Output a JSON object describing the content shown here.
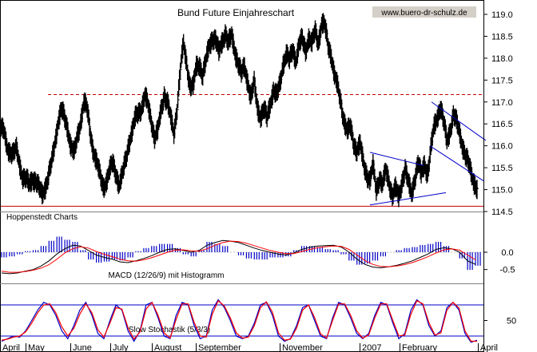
{
  "chart_data": [
    {
      "type": "bar",
      "subtype": "ohlc",
      "title": "Bund Future Einjahreschart",
      "source_label": "www.buero-dr-schulz.de",
      "panel_label": "Hoppenstedt Charts",
      "ylim": [
        114.5,
        119.0
      ],
      "yticks": [
        "119.0",
        "118.5",
        "118.0",
        "117.5",
        "117.0",
        "116.5",
        "116.0",
        "115.5",
        "115.0",
        "114.5"
      ],
      "x_labels": [
        "April",
        "May",
        "June",
        "July",
        "August",
        "September",
        "November",
        "2007",
        "February",
        "April"
      ],
      "support_level": 114.62,
      "resistance_level": 117.17,
      "price_path": [
        [
          0,
          116.4
        ],
        [
          4,
          116.3
        ],
        [
          8,
          116.0
        ],
        [
          12,
          115.9
        ],
        [
          16,
          115.8
        ],
        [
          20,
          115.9
        ],
        [
          24,
          115.6
        ],
        [
          28,
          115.3
        ],
        [
          32,
          115.2
        ],
        [
          36,
          115.1
        ],
        [
          40,
          115.3
        ],
        [
          44,
          115.2
        ],
        [
          48,
          115.0
        ],
        [
          52,
          114.9
        ],
        [
          56,
          115.1
        ],
        [
          60,
          115.3
        ],
        [
          64,
          115.6
        ],
        [
          68,
          116.1
        ],
        [
          72,
          116.6
        ],
        [
          76,
          116.8
        ],
        [
          80,
          116.6
        ],
        [
          84,
          116.4
        ],
        [
          88,
          116.0
        ],
        [
          92,
          115.8
        ],
        [
          96,
          116.2
        ],
        [
          100,
          116.6
        ],
        [
          104,
          117.0
        ],
        [
          108,
          116.8
        ],
        [
          112,
          116.3
        ],
        [
          116,
          115.9
        ],
        [
          120,
          115.6
        ],
        [
          124,
          115.3
        ],
        [
          128,
          115.1
        ],
        [
          132,
          115.2
        ],
        [
          136,
          115.4
        ],
        [
          140,
          115.6
        ],
        [
          144,
          115.4
        ],
        [
          148,
          115.1
        ],
        [
          152,
          115.3
        ],
        [
          156,
          115.7
        ],
        [
          160,
          116.1
        ],
        [
          164,
          116.3
        ],
        [
          168,
          116.6
        ],
        [
          172,
          116.8
        ],
        [
          176,
          116.9
        ],
        [
          180,
          117.1
        ],
        [
          184,
          116.9
        ],
        [
          188,
          116.6
        ],
        [
          192,
          116.2
        ],
        [
          196,
          116.3
        ],
        [
          200,
          116.8
        ],
        [
          204,
          117.2
        ],
        [
          208,
          117.0
        ],
        [
          212,
          116.6
        ],
        [
          216,
          116.3
        ],
        [
          220,
          116.9
        ],
        [
          224,
          117.7
        ],
        [
          228,
          118.3
        ],
        [
          232,
          117.9
        ],
        [
          236,
          117.4
        ],
        [
          240,
          117.3
        ],
        [
          244,
          117.8
        ],
        [
          248,
          117.9
        ],
        [
          252,
          117.6
        ],
        [
          256,
          117.9
        ],
        [
          260,
          118.3
        ],
        [
          264,
          118.5
        ],
        [
          268,
          118.4
        ],
        [
          272,
          118.1
        ],
        [
          276,
          118.4
        ],
        [
          280,
          118.6
        ],
        [
          284,
          118.3
        ],
        [
          288,
          118.5
        ],
        [
          292,
          118.2
        ],
        [
          296,
          117.9
        ],
        [
          300,
          117.6
        ],
        [
          304,
          117.8
        ],
        [
          308,
          117.5
        ],
        [
          312,
          117.1
        ],
        [
          316,
          117.4
        ],
        [
          320,
          116.9
        ],
        [
          324,
          116.7
        ],
        [
          328,
          116.8
        ],
        [
          332,
          116.6
        ],
        [
          336,
          117.0
        ],
        [
          340,
          117.3
        ],
        [
          344,
          117.1
        ],
        [
          348,
          117.4
        ],
        [
          352,
          117.9
        ],
        [
          356,
          118.1
        ],
        [
          360,
          117.9
        ],
        [
          364,
          118.2
        ],
        [
          368,
          118.0
        ],
        [
          372,
          118.3
        ],
        [
          376,
          118.4
        ],
        [
          380,
          118.2
        ],
        [
          384,
          118.5
        ],
        [
          388,
          118.3
        ],
        [
          392,
          118.6
        ],
        [
          396,
          118.4
        ],
        [
          400,
          118.8
        ],
        [
          404,
          118.7
        ],
        [
          408,
          118.3
        ],
        [
          412,
          118.1
        ],
        [
          416,
          117.6
        ],
        [
          420,
          117.3
        ],
        [
          424,
          117.0
        ],
        [
          428,
          116.6
        ],
        [
          432,
          116.3
        ],
        [
          436,
          116.4
        ],
        [
          440,
          116.1
        ],
        [
          444,
          115.9
        ],
        [
          448,
          116.0
        ],
        [
          452,
          115.6
        ],
        [
          456,
          115.4
        ],
        [
          460,
          115.2
        ],
        [
          464,
          115.5
        ],
        [
          468,
          115.0
        ],
        [
          472,
          115.3
        ],
        [
          476,
          115.1
        ],
        [
          480,
          115.4
        ],
        [
          484,
          115.2
        ],
        [
          488,
          114.9
        ],
        [
          492,
          115.0
        ],
        [
          496,
          114.8
        ],
        [
          500,
          115.2
        ],
        [
          504,
          115.5
        ],
        [
          508,
          115.1
        ],
        [
          512,
          114.9
        ],
        [
          516,
          115.3
        ],
        [
          520,
          115.6
        ],
        [
          524,
          115.3
        ],
        [
          528,
          115.6
        ],
        [
          532,
          115.4
        ],
        [
          536,
          115.9
        ],
        [
          540,
          116.4
        ],
        [
          544,
          116.7
        ],
        [
          548,
          116.9
        ],
        [
          552,
          116.5
        ],
        [
          556,
          116.1
        ],
        [
          560,
          116.4
        ],
        [
          564,
          116.7
        ],
        [
          568,
          116.5
        ],
        [
          572,
          116.3
        ],
        [
          576,
          116.0
        ],
        [
          580,
          115.7
        ],
        [
          584,
          115.5
        ],
        [
          588,
          115.3
        ],
        [
          592,
          115.1
        ],
        [
          594,
          115.0
        ]
      ],
      "trendlines": [
        {
          "from": [
            463,
            115.85
          ],
          "to": [
            530,
            115.55
          ],
          "color": "#0000c8"
        },
        {
          "from": [
            463,
            114.65
          ],
          "to": [
            558,
            114.93
          ],
          "color": "#0000c8"
        },
        {
          "from": [
            540,
            117.0
          ],
          "to": [
            608,
            116.12
          ],
          "color": "#0000c8"
        },
        {
          "from": [
            538,
            116.0
          ],
          "to": [
            605,
            115.2
          ],
          "color": "#0000c8"
        }
      ]
    },
    {
      "type": "line",
      "title": "MACD (12/26/9) mit Histogramm",
      "yticks": [
        "0.0",
        "-0.5"
      ],
      "ylim": [
        -0.9,
        0.6
      ],
      "histogram_color": "#0000c8",
      "series": [
        {
          "color": "#000000",
          "values": [
            -0.6,
            -0.62,
            -0.6,
            -0.55,
            -0.5,
            -0.4,
            -0.25,
            -0.05,
            0.1,
            0.2,
            0.18,
            0.05,
            -0.08,
            -0.15,
            -0.2,
            -0.28,
            -0.3,
            -0.25,
            -0.18,
            -0.1,
            0.0,
            0.08,
            0.1,
            0.05,
            0.0,
            0.05,
            0.2,
            0.28,
            0.34,
            0.32,
            0.28,
            0.2,
            0.12,
            0.05,
            0.0,
            -0.05,
            -0.08,
            -0.02,
            0.08,
            0.14,
            0.18,
            0.19,
            0.2,
            0.15,
            0.0,
            -0.2,
            -0.35,
            -0.43,
            -0.45,
            -0.42,
            -0.38,
            -0.32,
            -0.25,
            -0.15,
            -0.05,
            0.08,
            0.13,
            0.1,
            0.0,
            -0.25,
            -0.35
          ]
        },
        {
          "color": "#ff0000",
          "values": [
            -0.55,
            -0.58,
            -0.58,
            -0.56,
            -0.52,
            -0.46,
            -0.36,
            -0.2,
            -0.02,
            0.1,
            0.16,
            0.12,
            0.02,
            -0.06,
            -0.13,
            -0.2,
            -0.25,
            -0.26,
            -0.22,
            -0.16,
            -0.08,
            0.0,
            0.06,
            0.07,
            0.04,
            0.03,
            0.1,
            0.2,
            0.28,
            0.32,
            0.31,
            0.26,
            0.19,
            0.12,
            0.05,
            0.0,
            -0.04,
            -0.04,
            0.02,
            0.08,
            0.13,
            0.16,
            0.18,
            0.17,
            0.08,
            -0.08,
            -0.24,
            -0.35,
            -0.41,
            -0.42,
            -0.4,
            -0.36,
            -0.3,
            -0.22,
            -0.13,
            -0.02,
            0.07,
            0.1,
            0.06,
            -0.08,
            -0.22
          ]
        }
      ]
    },
    {
      "type": "line",
      "title": "Slow Stochastik (5/3/3)",
      "yticks": [
        "50"
      ],
      "ylim": [
        0,
        100
      ],
      "bands": [
        80,
        20
      ],
      "series": [
        {
          "color": "#0000c8",
          "values": [
            10,
            15,
            20,
            18,
            30,
            50,
            70,
            85,
            80,
            60,
            30,
            15,
            40,
            70,
            85,
            60,
            25,
            15,
            50,
            80,
            70,
            30,
            10,
            30,
            80,
            85,
            55,
            20,
            15,
            60,
            85,
            80,
            40,
            15,
            20,
            70,
            90,
            75,
            50,
            20,
            15,
            20,
            45,
            80,
            85,
            60,
            20,
            10,
            15,
            40,
            75,
            80,
            50,
            20,
            15,
            55,
            85,
            80,
            55,
            25,
            15,
            25,
            60,
            85,
            80,
            45,
            15,
            25,
            70,
            90,
            80,
            40,
            20,
            30,
            75,
            85,
            70,
            25,
            8,
            12
          ]
        },
        {
          "color": "#ff0000",
          "values": [
            12,
            14,
            18,
            20,
            28,
            45,
            65,
            80,
            82,
            65,
            38,
            20,
            35,
            62,
            82,
            65,
            32,
            18,
            45,
            75,
            72,
            36,
            14,
            28,
            72,
            85,
            60,
            26,
            16,
            52,
            82,
            82,
            46,
            20,
            18,
            62,
            88,
            78,
            55,
            26,
            16,
            18,
            40,
            75,
            86,
            66,
            26,
            12,
            14,
            35,
            70,
            80,
            56,
            24,
            16,
            50,
            82,
            82,
            60,
            30,
            16,
            22,
            55,
            82,
            82,
            50,
            20,
            22,
            62,
            88,
            82,
            46,
            22,
            26,
            70,
            85,
            74,
            30,
            10,
            10
          ]
        }
      ]
    }
  ]
}
